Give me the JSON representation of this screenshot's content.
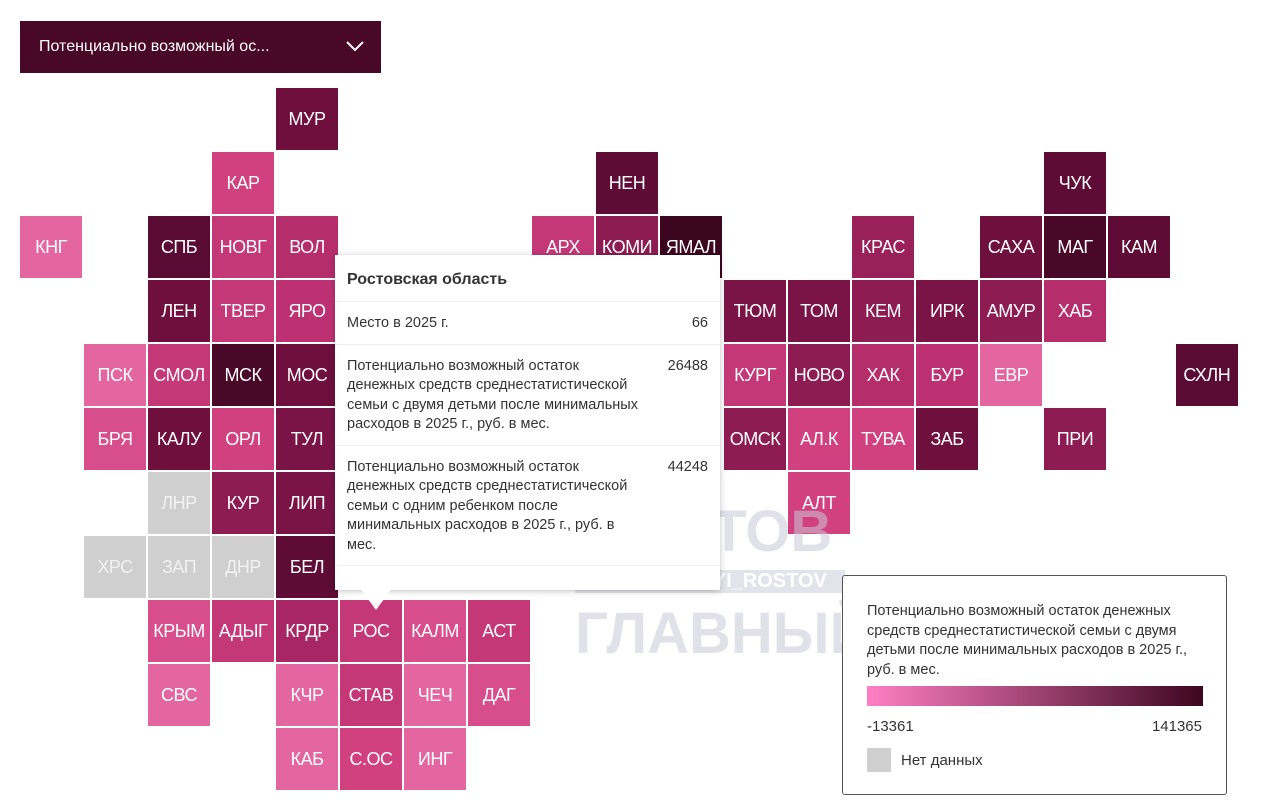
{
  "dropdown": {
    "label": "Потенциально возможный ос..."
  },
  "no_data_color": "#cfcfcf",
  "tiles": [
    {
      "label": "МУР",
      "color": "#6e0f3d"
    },
    {
      "label": "КАР",
      "color": "#d1417f"
    },
    {
      "label": "НЕН",
      "color": "#5e0c35"
    },
    {
      "label": "ЧУК",
      "color": "#5e0c35"
    },
    {
      "label": "КНГ",
      "color": "#e466a0"
    },
    {
      "label": "СПБ",
      "color": "#5a0b33"
    },
    {
      "label": "НОВГ",
      "color": "#c43878"
    },
    {
      "label": "ВОЛ",
      "color": "#b62d6c"
    },
    {
      "label": "АРХ",
      "color": "#c43878"
    },
    {
      "label": "КОМИ",
      "color": "#8c1c52"
    },
    {
      "label": "ЯМАЛ",
      "color": "#3d0620"
    },
    {
      "label": "КРАС",
      "color": "#9a2059"
    },
    {
      "label": "САХА",
      "color": "#6e0f3d"
    },
    {
      "label": "МАГ",
      "color": "#4a0829"
    },
    {
      "label": "КАМ",
      "color": "#5e0c35"
    },
    {
      "label": "ЛЕН",
      "color": "#6e0f3d"
    },
    {
      "label": "ТВЕР",
      "color": "#c43878"
    },
    {
      "label": "ЯРО",
      "color": "#bd3172"
    },
    {
      "label": "ТЮМ",
      "color": "#7a1446"
    },
    {
      "label": "ТОМ",
      "color": "#7a1446"
    },
    {
      "label": "КЕМ",
      "color": "#8c1c52"
    },
    {
      "label": "ИРК",
      "color": "#7a1446"
    },
    {
      "label": "АМУР",
      "color": "#8c1c52"
    },
    {
      "label": "ХАБ",
      "color": "#b62d6c"
    },
    {
      "label": "ПСК",
      "color": "#e466a0"
    },
    {
      "label": "СМОЛ",
      "color": "#c43878"
    },
    {
      "label": "МСК",
      "color": "#4a0829"
    },
    {
      "label": "МОС",
      "color": "#6e0f3d"
    },
    {
      "label": "КУРГ",
      "color": "#c43878"
    },
    {
      "label": "НОВО",
      "color": "#8c1c52"
    },
    {
      "label": "ХАК",
      "color": "#b62d6c"
    },
    {
      "label": "БУР",
      "color": "#bd3172"
    },
    {
      "label": "ЕВР",
      "color": "#e466a0"
    },
    {
      "label": "СХЛН",
      "color": "#5a0b33"
    },
    {
      "label": "БРЯ",
      "color": "#d84d8c"
    },
    {
      "label": "КАЛУ",
      "color": "#6e0f3d"
    },
    {
      "label": "ОРЛ",
      "color": "#d1417f"
    },
    {
      "label": "ТУЛ",
      "color": "#7a1446"
    },
    {
      "label": "ОМСК",
      "color": "#8c1c52"
    },
    {
      "label": "АЛ.К",
      "color": "#d1417f"
    },
    {
      "label": "ТУВА",
      "color": "#d1417f"
    },
    {
      "label": "ЗАБ",
      "color": "#6e0f3d"
    },
    {
      "label": "ПРИ",
      "color": "#8c1c52"
    },
    {
      "label": "ЛНР",
      "color": null
    },
    {
      "label": "КУР",
      "color": "#8c1c52"
    },
    {
      "label": "ЛИП",
      "color": "#7a1446"
    },
    {
      "label": "АЛТ",
      "color": "#d1417f"
    },
    {
      "label": "ХРС",
      "color": null
    },
    {
      "label": "ЗАП",
      "color": null
    },
    {
      "label": "ДНР",
      "color": null
    },
    {
      "label": "БЕЛ",
      "color": "#5e0c35"
    },
    {
      "label": "КРЫМ",
      "color": "#d84d8c"
    },
    {
      "label": "АДЫГ",
      "color": "#c43878"
    },
    {
      "label": "КРДР",
      "color": "#a82663"
    },
    {
      "label": "РОС",
      "color": "#c43878"
    },
    {
      "label": "КАЛМ",
      "color": "#d84d8c"
    },
    {
      "label": "АСТ",
      "color": "#c43878"
    },
    {
      "label": "СВС",
      "color": "#e466a0"
    },
    {
      "label": "КЧР",
      "color": "#e466a0"
    },
    {
      "label": "СТАВ",
      "color": "#c43878"
    },
    {
      "label": "ЧЕЧ",
      "color": "#e466a0"
    },
    {
      "label": "ДАГ",
      "color": "#d84d8c"
    },
    {
      "label": "КАБ",
      "color": "#e466a0"
    },
    {
      "label": "С.ОС",
      "color": "#d1417f"
    },
    {
      "label": "ИНГ",
      "color": "#e466a0"
    }
  ],
  "tooltip": {
    "title": "Ростовская область",
    "rows": [
      {
        "label": "Место в 2025 г.",
        "value": 66
      },
      {
        "label": "Потенциально возможный остаток денежных средств среднестатистической семьи с двумя детьми после минимальных расходов в 2025 г., руб. в мес.",
        "value": 26488
      },
      {
        "label": "Потенциально возможный остаток денежных средств среднестатистической семьи с одним ребенком после минимальных расходов в 2025 г., руб. в мес.",
        "value": 44248
      }
    ]
  },
  "legend": {
    "title": "Потенциально возможный остаток денежных средств среднестатистической семьи с двумя детьми после минимальных расходов в 2025 г., руб. в мес.",
    "min": -13361,
    "max": 141365,
    "color_min": "#ff7fc4",
    "color_max": "#3d0620",
    "no_data_label": "Нет данных"
  },
  "watermark": {
    "line1": "РОСТОВ",
    "line2": "T.ME/GLAVNYI_ROSTOV",
    "line3": "ГЛАВНЫЙ"
  }
}
